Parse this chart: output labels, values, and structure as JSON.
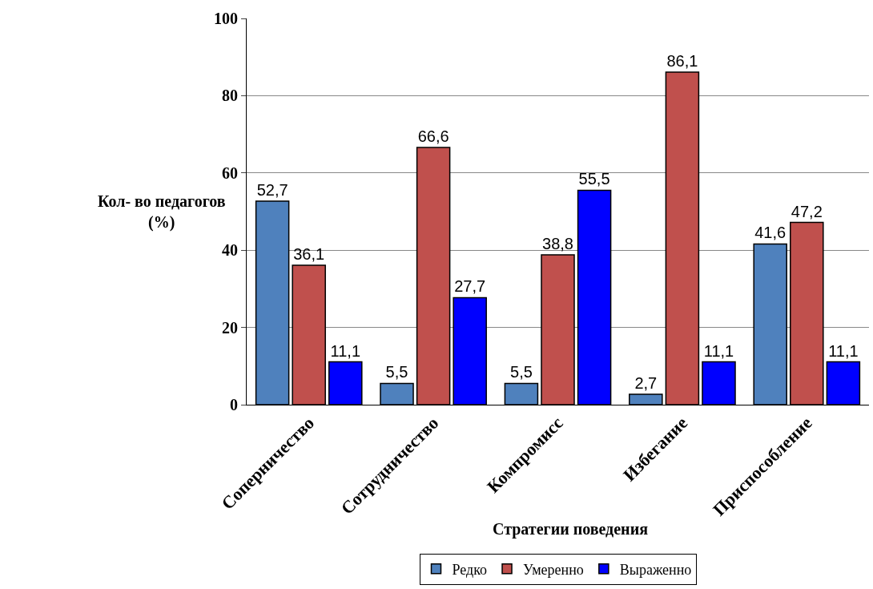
{
  "chart_data": {
    "type": "bar",
    "xlabel": "Стратегии поведения",
    "ylabel": "Кол- во педагогов (%)",
    "categories": [
      "Соперничество",
      "Сотрудничество",
      "Компромисс",
      "Избегание",
      "Приспособление"
    ],
    "series": [
      {
        "name": "Редко",
        "color": "#4f81bd",
        "values": [
          52.7,
          5.5,
          5.5,
          2.7,
          41.6
        ],
        "value_labels": [
          "52,7",
          "5,5",
          "5,5",
          "2,7",
          "41,6"
        ]
      },
      {
        "name": "Умеренно",
        "color": "#c0504d",
        "values": [
          36.1,
          66.6,
          38.8,
          86.1,
          47.2
        ],
        "value_labels": [
          "36,1",
          "66,6",
          "38,8",
          "86,1",
          "47,2"
        ]
      },
      {
        "name": "Выраженно",
        "color": "#0000ff",
        "values": [
          11.1,
          27.7,
          55.5,
          11.1,
          11.1
        ],
        "value_labels": [
          "11,1",
          "27,7",
          "55,5",
          "11,1",
          "11,1"
        ]
      }
    ],
    "ylim": [
      0,
      100
    ],
    "yticks": [
      0,
      20,
      40,
      60,
      80,
      100
    ],
    "grid": "y",
    "legend": "bottom"
  }
}
